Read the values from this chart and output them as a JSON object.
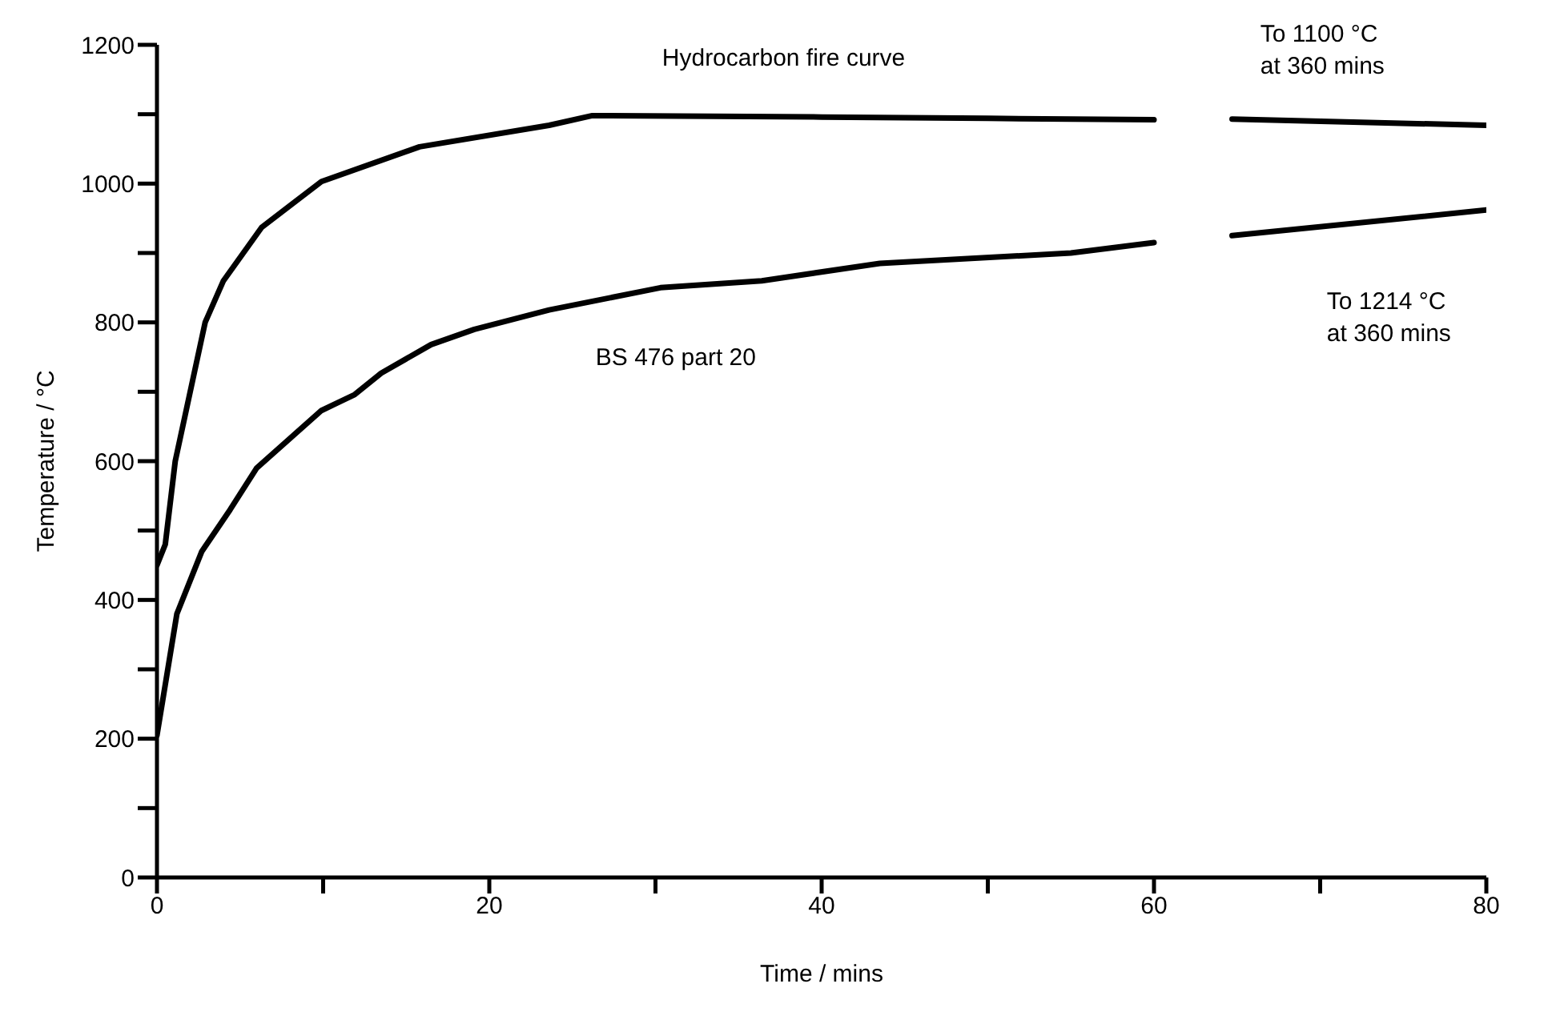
{
  "chart_data": {
    "type": "line",
    "xlabel": "Time / mins",
    "ylabel": "Temperature / °C",
    "xlim": [
      0,
      80
    ],
    "ylim": [
      0,
      1200
    ],
    "xticks": [
      0,
      {
        "value": 10,
        "label": null
      },
      20,
      {
        "value": 30,
        "label": null
      },
      40,
      {
        "value": 50,
        "label": null
      },
      60,
      {
        "value": 70,
        "label": null
      },
      80
    ],
    "yticks": [
      0,
      {
        "value": 100,
        "label": null
      },
      200,
      {
        "value": 300,
        "label": null
      },
      400,
      {
        "value": 500,
        "label": null
      },
      600,
      {
        "value": 700,
        "label": null
      },
      800,
      {
        "value": 900,
        "label": null
      },
      1000,
      {
        "value": 1100,
        "label": null
      },
      1200
    ],
    "grid": false,
    "legend": false,
    "marker": "none",
    "line_style": "solid",
    "series": [
      {
        "name": "Hydrocarbon fire curve",
        "color": "#000000",
        "x": [
          0,
          0.5,
          1.1,
          2.9,
          4.0,
          6.3,
          9.9,
          15.8,
          23.6,
          26.2,
          40,
          50,
          60,
          62,
          64.7,
          80
        ],
        "values": [
          450,
          480,
          600,
          800,
          860,
          937,
          1003,
          1053,
          1084,
          1098,
          1096,
          1094,
          1092,
          null,
          1093,
          1084
        ]
      },
      {
        "name": "BS 476 part 20",
        "color": "#000000",
        "x": [
          0,
          1.2,
          2.7,
          4.4,
          6.0,
          9.9,
          11.9,
          13.5,
          16.5,
          19.1,
          23.6,
          30.3,
          36.4,
          43.5,
          55,
          60,
          62,
          64.7,
          80
        ],
        "values": [
          205,
          380,
          470,
          530,
          590,
          673,
          696,
          727,
          768,
          790,
          818,
          850,
          860,
          885,
          900,
          915,
          null,
          925,
          962
        ]
      }
    ],
    "annotations": [
      "To 1100 °C\nat 360 mins",
      "To 1214 °C\nat 360 mins"
    ]
  }
}
